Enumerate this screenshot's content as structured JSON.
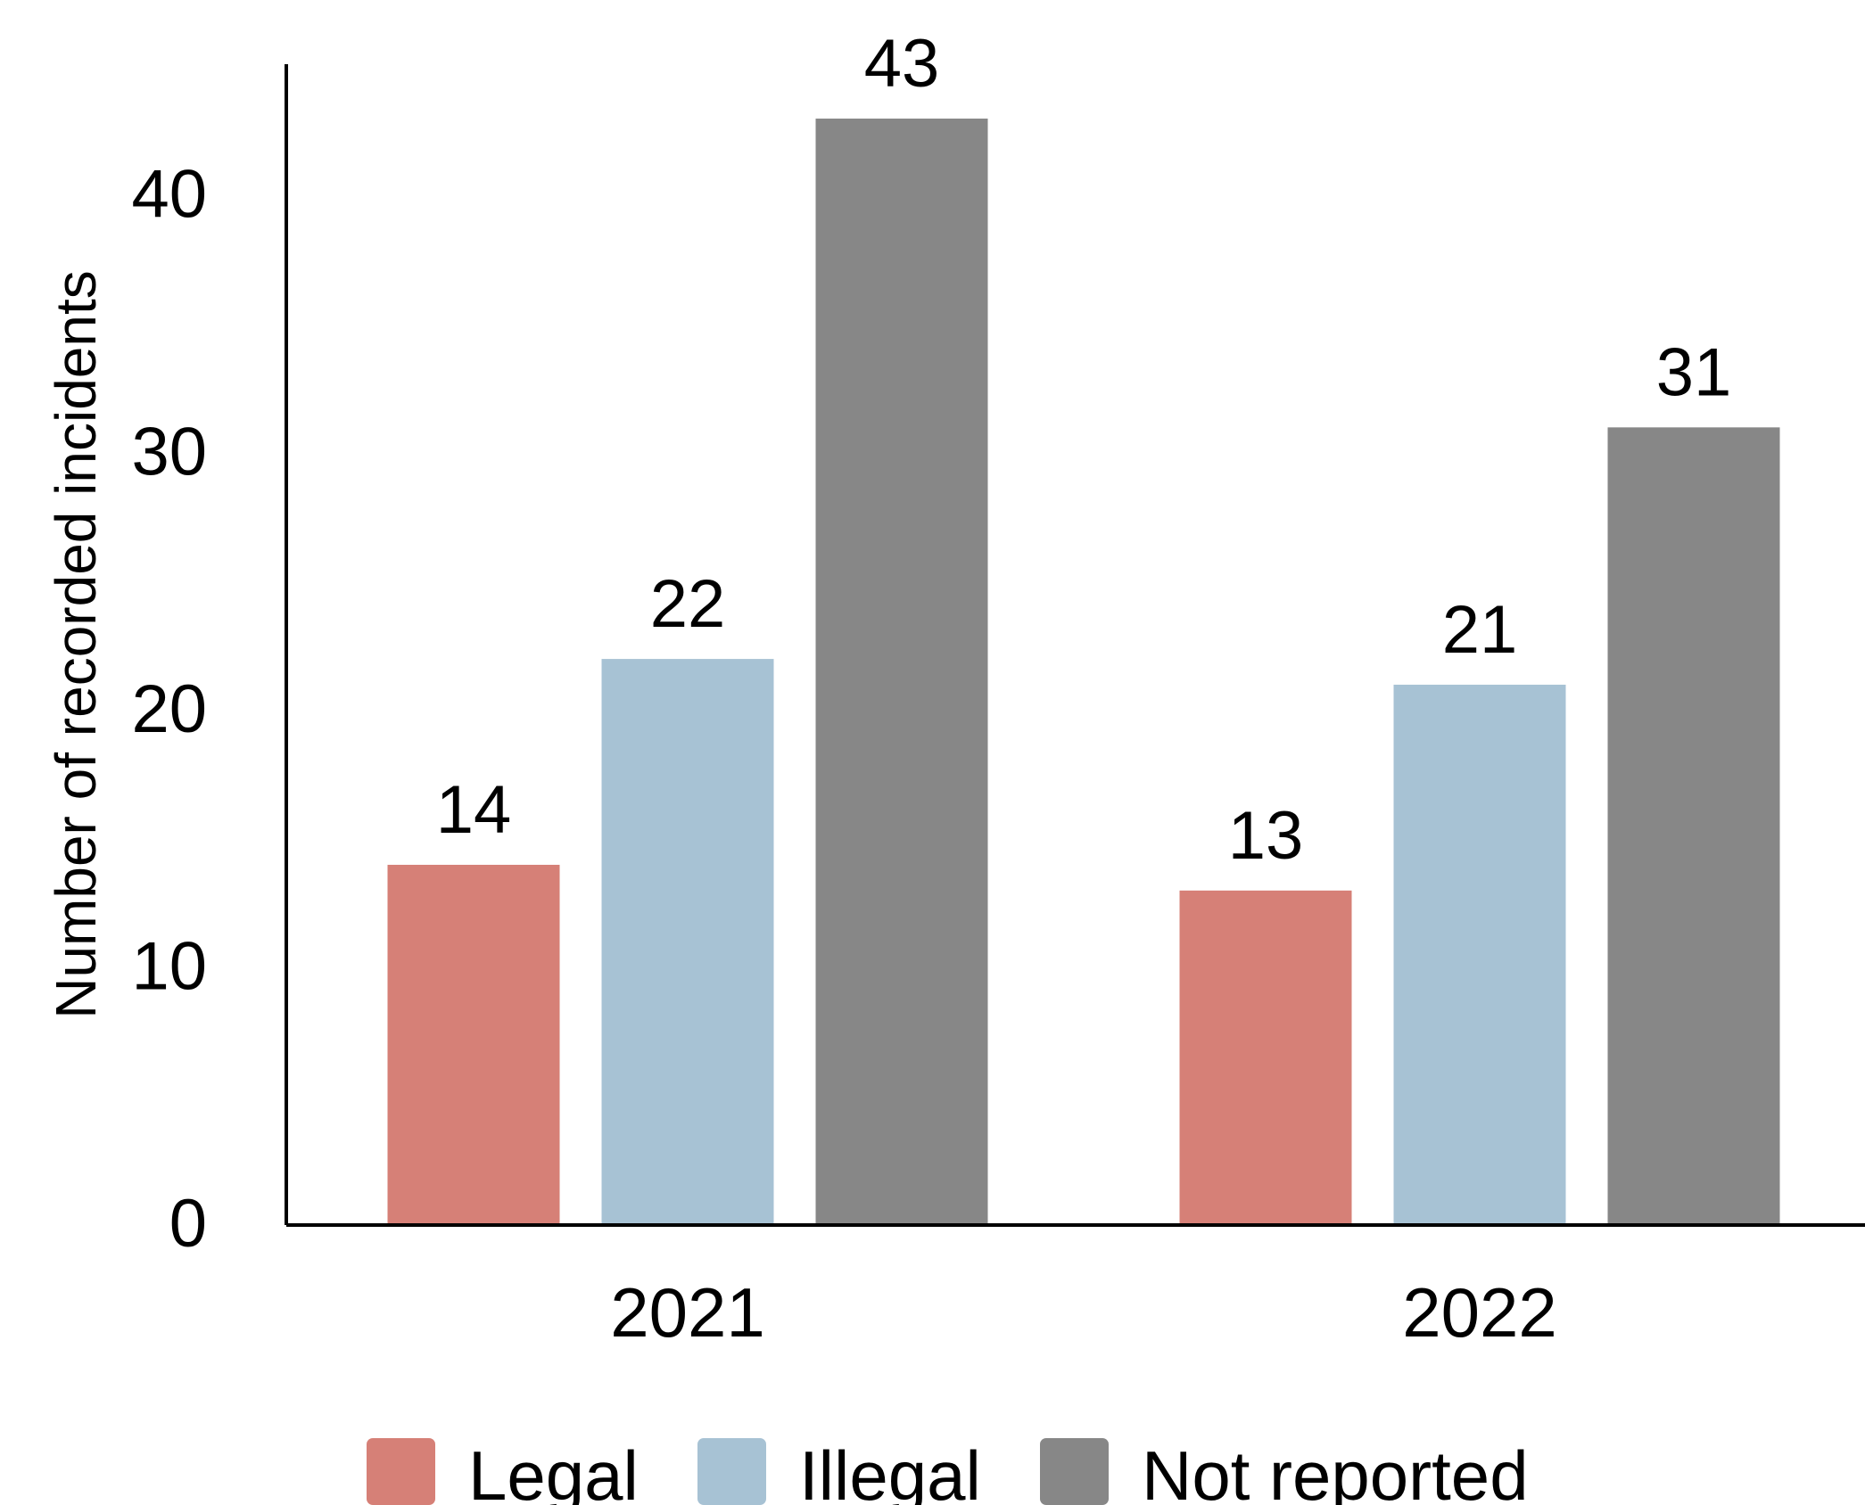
{
  "chart_data": {
    "type": "bar",
    "categories": [
      "2021",
      "2022"
    ],
    "series": [
      {
        "name": "Legal",
        "values": [
          14,
          13
        ],
        "color": "#D68077"
      },
      {
        "name": "Illegal",
        "values": [
          22,
          21
        ],
        "color": "#A7C2D4"
      },
      {
        "name": "Not reported",
        "values": [
          43,
          31
        ],
        "color": "#878787"
      }
    ],
    "title": "",
    "xlabel": "",
    "ylabel": "Number of recorded incidents",
    "ylim": [
      0,
      45
    ],
    "yticks": [
      0,
      10,
      20,
      30,
      40
    ],
    "grid": false,
    "legend": "bottom",
    "data_labels": true
  }
}
